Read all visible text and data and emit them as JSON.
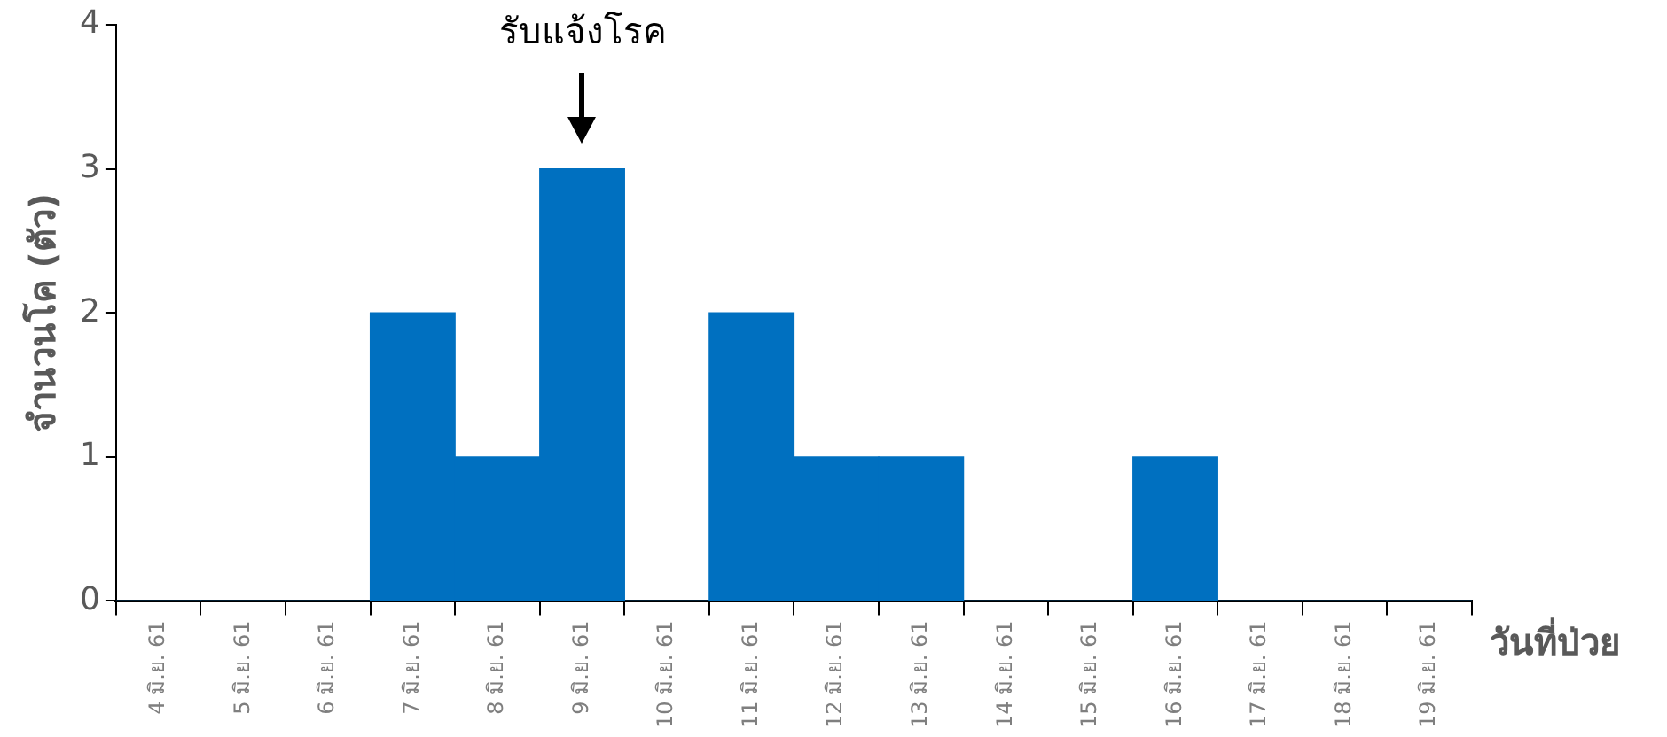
{
  "chart_data": {
    "type": "bar",
    "xlabel": "วันที่ป่วย",
    "ylabel": "จำนวนโค (ตัว)",
    "categories": [
      "4 มิ.ย. 61",
      "5 มิ.ย. 61",
      "6 มิ.ย. 61",
      "7 มิ.ย. 61",
      "8 มิ.ย. 61",
      "9 มิ.ย. 61",
      "10 มิ.ย. 61",
      "11 มิ.ย. 61",
      "12 มิ.ย. 61",
      "13 มิ.ย. 61",
      "14 มิ.ย. 61",
      "15 มิ.ย. 61",
      "16 มิ.ย. 61",
      "17 มิ.ย. 61",
      "18 มิ.ย. 61",
      "19 มิ.ย. 61"
    ],
    "values": [
      0,
      0,
      0,
      2,
      1,
      3,
      0,
      2,
      1,
      1,
      0,
      0,
      1,
      0,
      0,
      0
    ],
    "color": "#0070c0",
    "ylim": [
      0,
      4
    ],
    "yticks": [
      0,
      1,
      2,
      3,
      4
    ],
    "grid": false,
    "legend": false,
    "annotations": [
      "รับแจ้งโรค"
    ]
  }
}
